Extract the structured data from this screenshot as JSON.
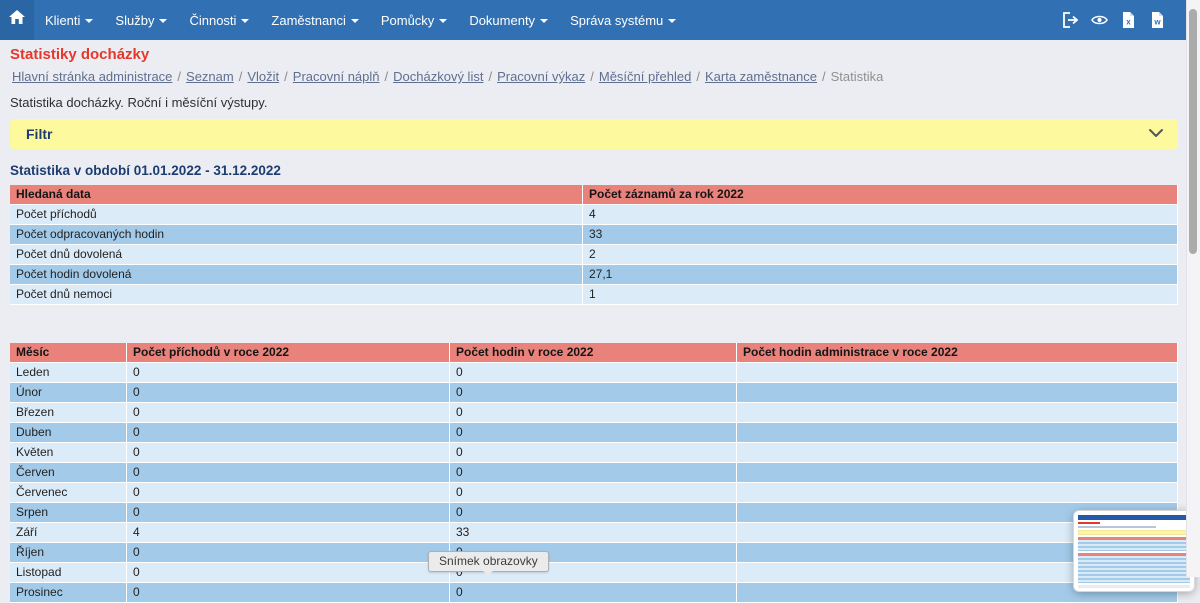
{
  "colors": {
    "nav-blue": "#3070b3",
    "nav-blue-dark": "#2a65a4",
    "page-bg": "#ecedf2",
    "title-red": "#e5382c",
    "link-blue": "#5f6f90",
    "accent-yellow": "#fcf99f",
    "heading-navy": "#1d3c70",
    "header-red": "#e9827b",
    "row-light": "#dcebf8",
    "row-medium": "#a3cbe9"
  },
  "nav": {
    "items": [
      {
        "label": "Klienti"
      },
      {
        "label": "Služby"
      },
      {
        "label": "Činnosti"
      },
      {
        "label": "Zaměstnanci"
      },
      {
        "label": "Pomůcky"
      },
      {
        "label": "Dokumenty"
      },
      {
        "label": "Správa systému"
      }
    ],
    "icons": [
      "home-icon",
      "logout-icon",
      "eye-icon",
      "excel-file-icon",
      "word-file-icon"
    ]
  },
  "page": {
    "title": "Statistiky docházky",
    "breadcrumb": {
      "links": [
        "Hlavní stránka administrace",
        "Seznam",
        "Vložit",
        "Pracovní náplň",
        "Docházkový list",
        "Pracovní výkaz",
        "Měsíční přehled",
        "Karta zaměstnance"
      ],
      "current": "Statistika",
      "separator": "/"
    },
    "description": "Statistika docházky. Roční i měsíční výstupy.",
    "filter_label": "Filtr",
    "section_heading": "Statistika v období 01.01.2022 - 31.12.2022"
  },
  "summary_table": {
    "headers": [
      "Hledaná data",
      "Počet záznamů za rok 2022"
    ],
    "rows": [
      [
        "Počet příchodů",
        "4"
      ],
      [
        "Počet odpracovaných hodin",
        "33"
      ],
      [
        "Počet dnů dovolená",
        "2"
      ],
      [
        "Počet hodin dovolená",
        "27,1"
      ],
      [
        "Počet dnů nemoci",
        "1"
      ]
    ]
  },
  "monthly_table": {
    "headers": [
      "Měsíc",
      "Počet příchodů v roce 2022",
      "Počet hodin v roce 2022",
      "Počet hodin administrace v roce 2022"
    ],
    "rows": [
      [
        "Leden",
        "0",
        "0",
        ""
      ],
      [
        "Únor",
        "0",
        "0",
        ""
      ],
      [
        "Březen",
        "0",
        "0",
        ""
      ],
      [
        "Duben",
        "0",
        "0",
        ""
      ],
      [
        "Květen",
        "0",
        "0",
        ""
      ],
      [
        "Červen",
        "0",
        "0",
        ""
      ],
      [
        "Červenec",
        "0",
        "0",
        ""
      ],
      [
        "Srpen",
        "0",
        "0",
        ""
      ],
      [
        "Září",
        "4",
        "33",
        ""
      ],
      [
        "Říjen",
        "0",
        "0",
        ""
      ],
      [
        "Listopad",
        "0",
        "0",
        ""
      ],
      [
        "Prosinec",
        "0",
        "0",
        ""
      ]
    ]
  },
  "tooltip": {
    "text": "Snímek obrazovky"
  }
}
